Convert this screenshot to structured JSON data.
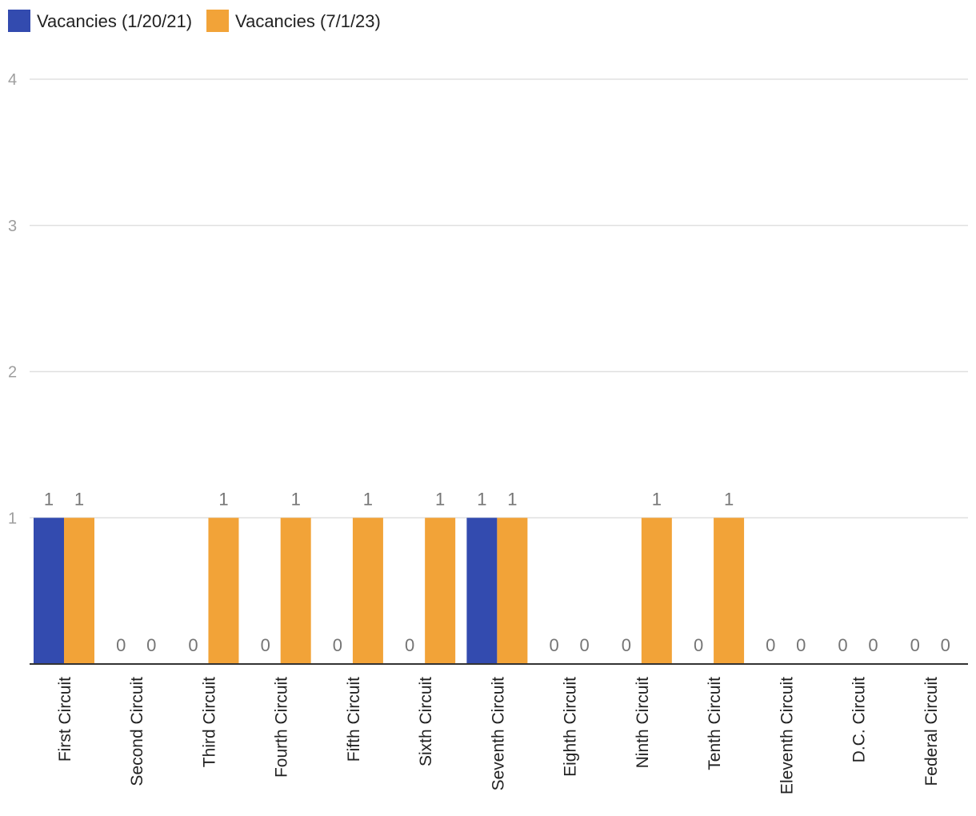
{
  "chart_data": {
    "type": "bar",
    "title": "",
    "xlabel": "",
    "ylabel": "",
    "ylim": [
      0,
      4
    ],
    "yticks": [
      1,
      2,
      3,
      4
    ],
    "grid": true,
    "legend_position": "top-left",
    "categories": [
      "First Circuit",
      "Second Circuit",
      "Third Circuit",
      "Fourth Circuit",
      "Fifth Circuit",
      "Sixth Circuit",
      "Seventh Circuit",
      "Eighth Circuit",
      "Ninth Circuit",
      "Tenth Circuit",
      "Eleventh Circuit",
      "D.C. Circuit",
      "Federal Circuit"
    ],
    "series": [
      {
        "name": "Vacancies (1/20/21)",
        "color": "#334BAF",
        "values": [
          1,
          0,
          0,
          0,
          0,
          0,
          1,
          0,
          0,
          0,
          0,
          0,
          0
        ]
      },
      {
        "name": "Vacancies (7/1/23)",
        "color": "#F2A338",
        "values": [
          1,
          0,
          1,
          1,
          1,
          1,
          1,
          0,
          1,
          1,
          0,
          0,
          0
        ]
      }
    ]
  }
}
